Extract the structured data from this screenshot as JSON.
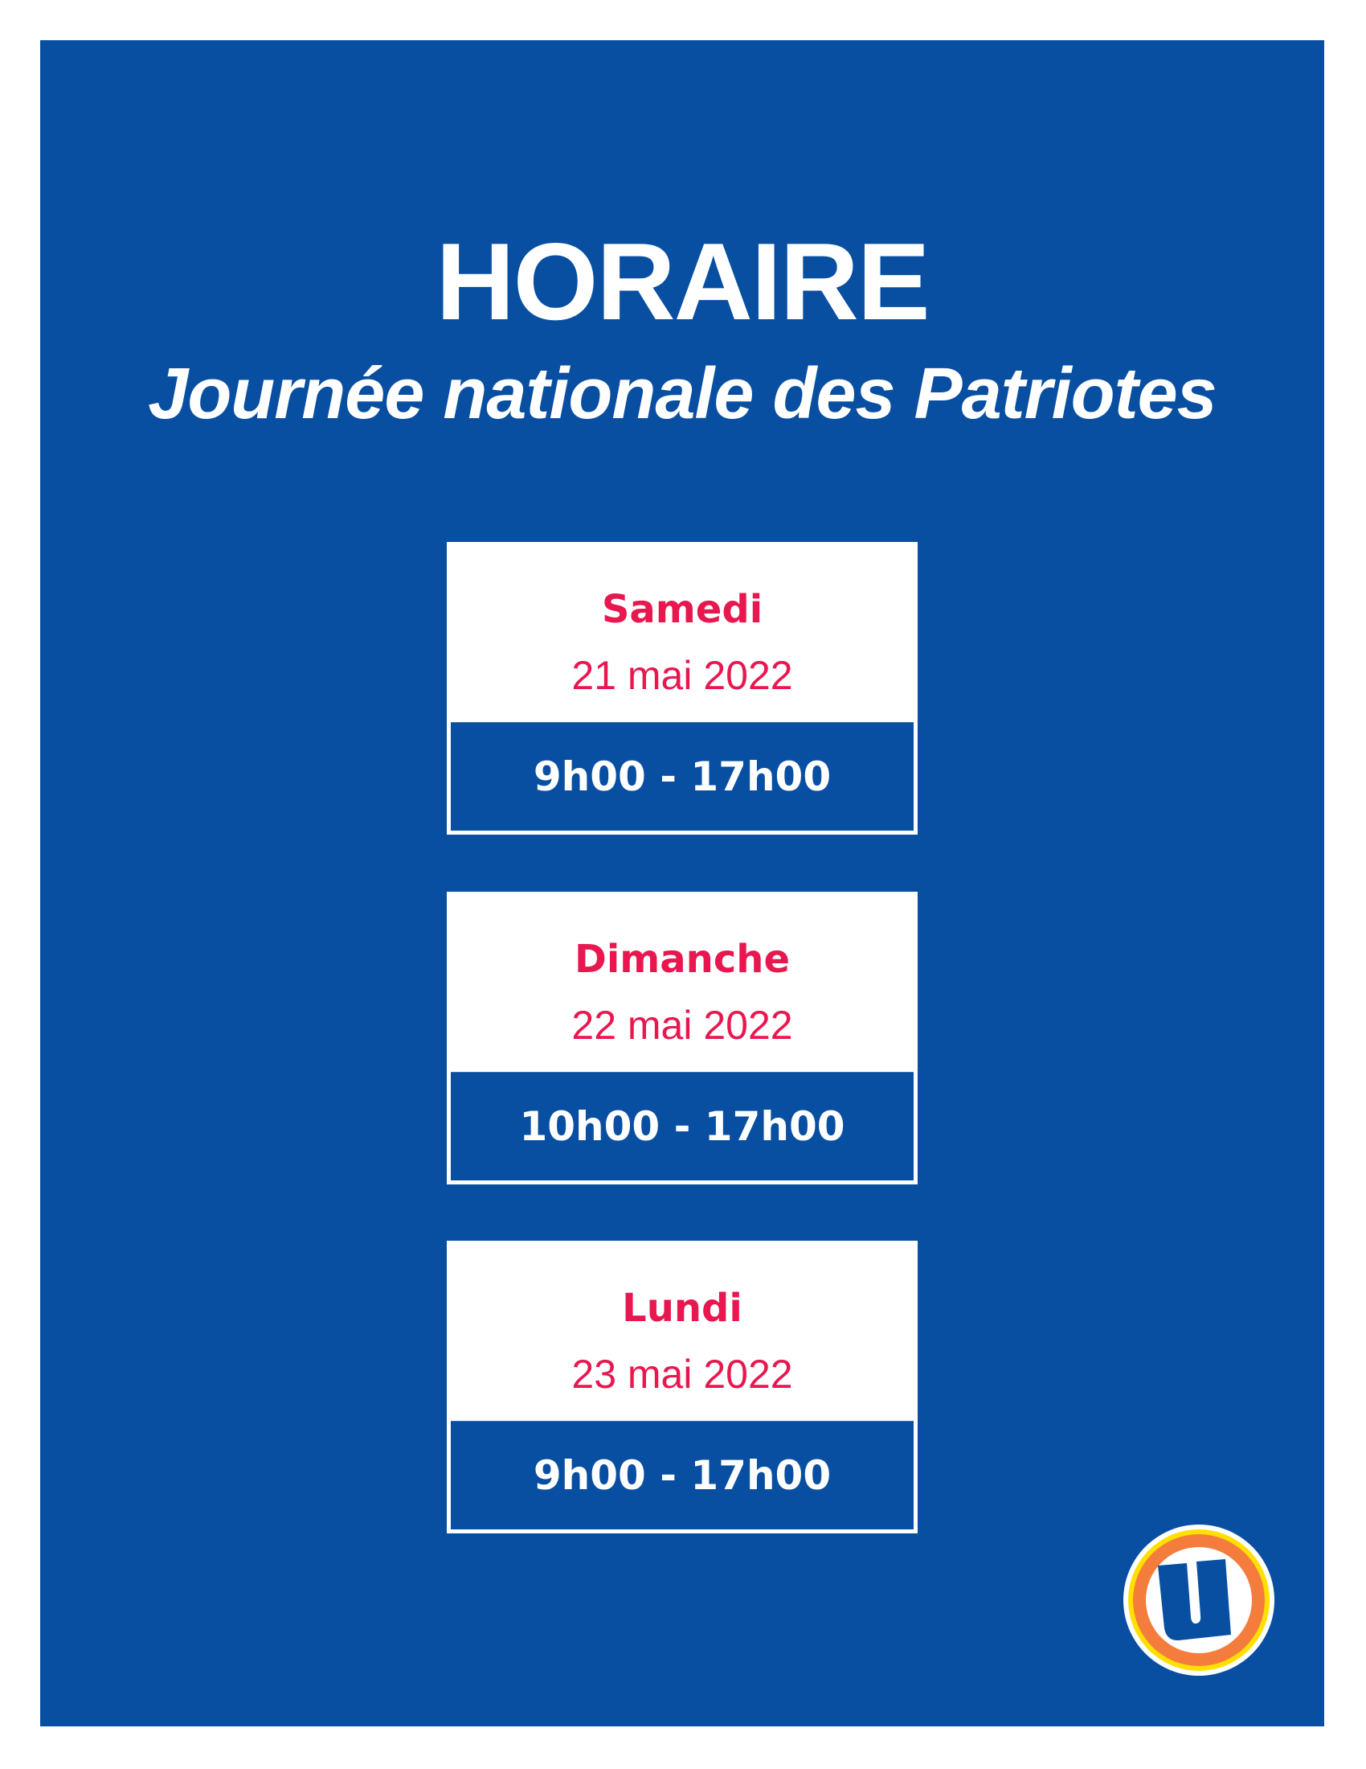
{
  "header": {
    "title": "HORAIRE",
    "subtitle": "Journée nationale des Patriotes"
  },
  "schedule": [
    {
      "day": "Samedi",
      "date": "21 mai 2022",
      "hours": "9h00 - 17h00"
    },
    {
      "day": "Dimanche",
      "date": "22 mai 2022",
      "hours": "10h00 - 17h00"
    },
    {
      "day": "Lundi",
      "date": "23 mai 2022",
      "hours": "9h00 - 17h00"
    }
  ],
  "logo": {
    "icon": "u-logo-icon",
    "text": "U"
  },
  "colors": {
    "background": "#084fa2",
    "accent": "#e8174f",
    "logo_orange": "#f47c3c",
    "logo_yellow": "#ffe000"
  }
}
